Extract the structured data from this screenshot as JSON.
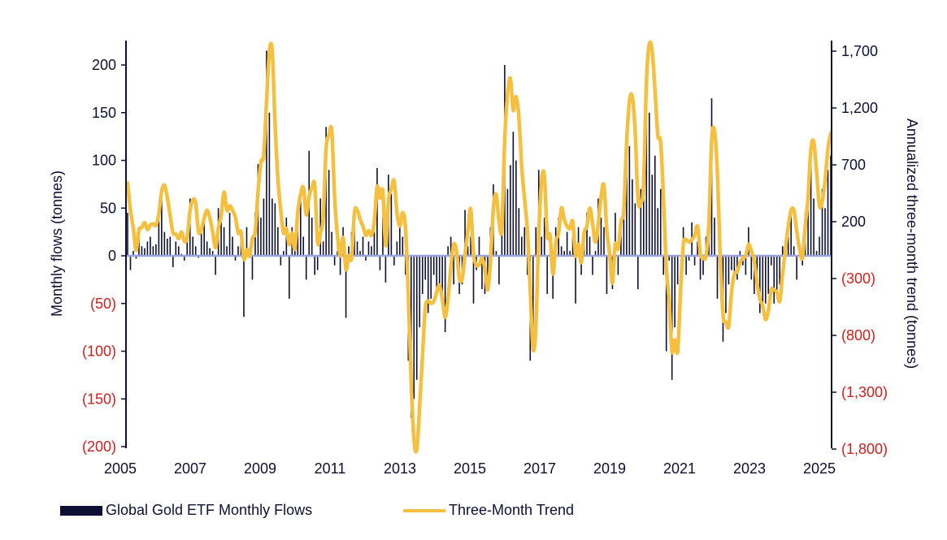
{
  "chart_data": {
    "type": "bar+line",
    "title": "",
    "xlabel": "",
    "ylabel": "Monthly flows (tonnes)",
    "y2label": "Annualized three-month trend (tonnes)",
    "ylim": [
      -200,
      220
    ],
    "y2lim": [
      -1800,
      1800
    ],
    "x_ticks": [
      "2005",
      "2007",
      "2009",
      "2011",
      "2013",
      "2015",
      "2017",
      "2019",
      "2021",
      "2023",
      "2025"
    ],
    "y_ticks": [
      {
        "v": 200,
        "t": "200"
      },
      {
        "v": 150,
        "t": "150"
      },
      {
        "v": 100,
        "t": "100"
      },
      {
        "v": 50,
        "t": "50"
      },
      {
        "v": 0,
        "t": "0"
      },
      {
        "v": -50,
        "t": "(50)"
      },
      {
        "v": -100,
        "t": "(100)"
      },
      {
        "v": -150,
        "t": "(150)"
      },
      {
        "v": -200,
        "t": "(200)"
      }
    ],
    "y2_ticks": [
      {
        "v": 1700,
        "t": "1,700"
      },
      {
        "v": 1200,
        "t": "1,200"
      },
      {
        "v": 700,
        "t": "700"
      },
      {
        "v": 200,
        "t": "200"
      },
      {
        "v": -300,
        "t": "(300)"
      },
      {
        "v": -800,
        "t": "(800)"
      },
      {
        "v": -1300,
        "t": "(1,300)"
      },
      {
        "v": -1800,
        "t": "(1,800)"
      }
    ],
    "start": "2005-01",
    "trend_method": "3-month rolling sum x 4",
    "series": [
      {
        "name": "Global Gold ETF Monthly Flows",
        "type": "bar",
        "color": "#0d1033",
        "values": [
          45,
          -15,
          5,
          -3,
          30,
          10,
          8,
          15,
          20,
          10,
          12,
          45,
          60,
          25,
          18,
          20,
          -12,
          15,
          10,
          2,
          -5,
          18,
          60,
          20,
          10,
          -2,
          25,
          35,
          15,
          8,
          5,
          -20,
          50,
          35,
          30,
          10,
          45,
          20,
          -5,
          10,
          22,
          -64,
          30,
          8,
          -25,
          45,
          96,
          40,
          60,
          215,
          150,
          60,
          55,
          30,
          -10,
          5,
          40,
          -45,
          30,
          5,
          35,
          70,
          20,
          -25,
          110,
          40,
          -20,
          -15,
          60,
          15,
          135,
          90,
          25,
          -10,
          5,
          -20,
          30,
          -65,
          10,
          25,
          35,
          15,
          5,
          20,
          -5,
          15,
          10,
          25,
          92,
          -15,
          40,
          -28,
          85,
          65,
          -10,
          15,
          35,
          20,
          -20,
          -110,
          -170,
          -150,
          -130,
          -75,
          -40,
          -25,
          -60,
          -45,
          -20,
          -40,
          -30,
          -50,
          -80,
          10,
          20,
          -30,
          -5,
          -40,
          -30,
          48,
          10,
          20,
          -50,
          -15,
          20,
          -35,
          -40,
          -25,
          30,
          75,
          5,
          -30,
          60,
          200,
          70,
          95,
          130,
          100,
          50,
          20,
          30,
          -20,
          -110,
          -100,
          30,
          90,
          20,
          40,
          -40,
          20,
          -45,
          30,
          40,
          10,
          5,
          25,
          5,
          20,
          -50,
          30,
          -20,
          15,
          45,
          20,
          -20,
          5,
          60,
          40,
          30,
          -40,
          -10,
          -35,
          45,
          -20,
          25,
          70,
          130,
          115,
          80,
          55,
          -35,
          70,
          100,
          190,
          150,
          85,
          105,
          50,
          70,
          -20,
          -100,
          -5,
          -130,
          -75,
          -30,
          0,
          30,
          -20,
          -5,
          35,
          -10,
          15,
          -25,
          -20,
          20,
          45,
          165,
          40,
          -45,
          -20,
          -90,
          -60,
          -30,
          -15,
          -20,
          -25,
          5,
          -10,
          -20,
          30,
          -25,
          -40,
          -20,
          -60,
          -55,
          -50,
          -40,
          -10,
          -50,
          -45,
          -30,
          10,
          10,
          20,
          45,
          10,
          -25,
          5,
          -10,
          45,
          70,
          95,
          60,
          5,
          20,
          70,
          50,
          90,
          105
        ]
      },
      {
        "name": "Three-Month Trend",
        "type": "line",
        "axis": "right",
        "color": "#f5c040"
      }
    ],
    "legend": "bottom",
    "grid": false
  }
}
